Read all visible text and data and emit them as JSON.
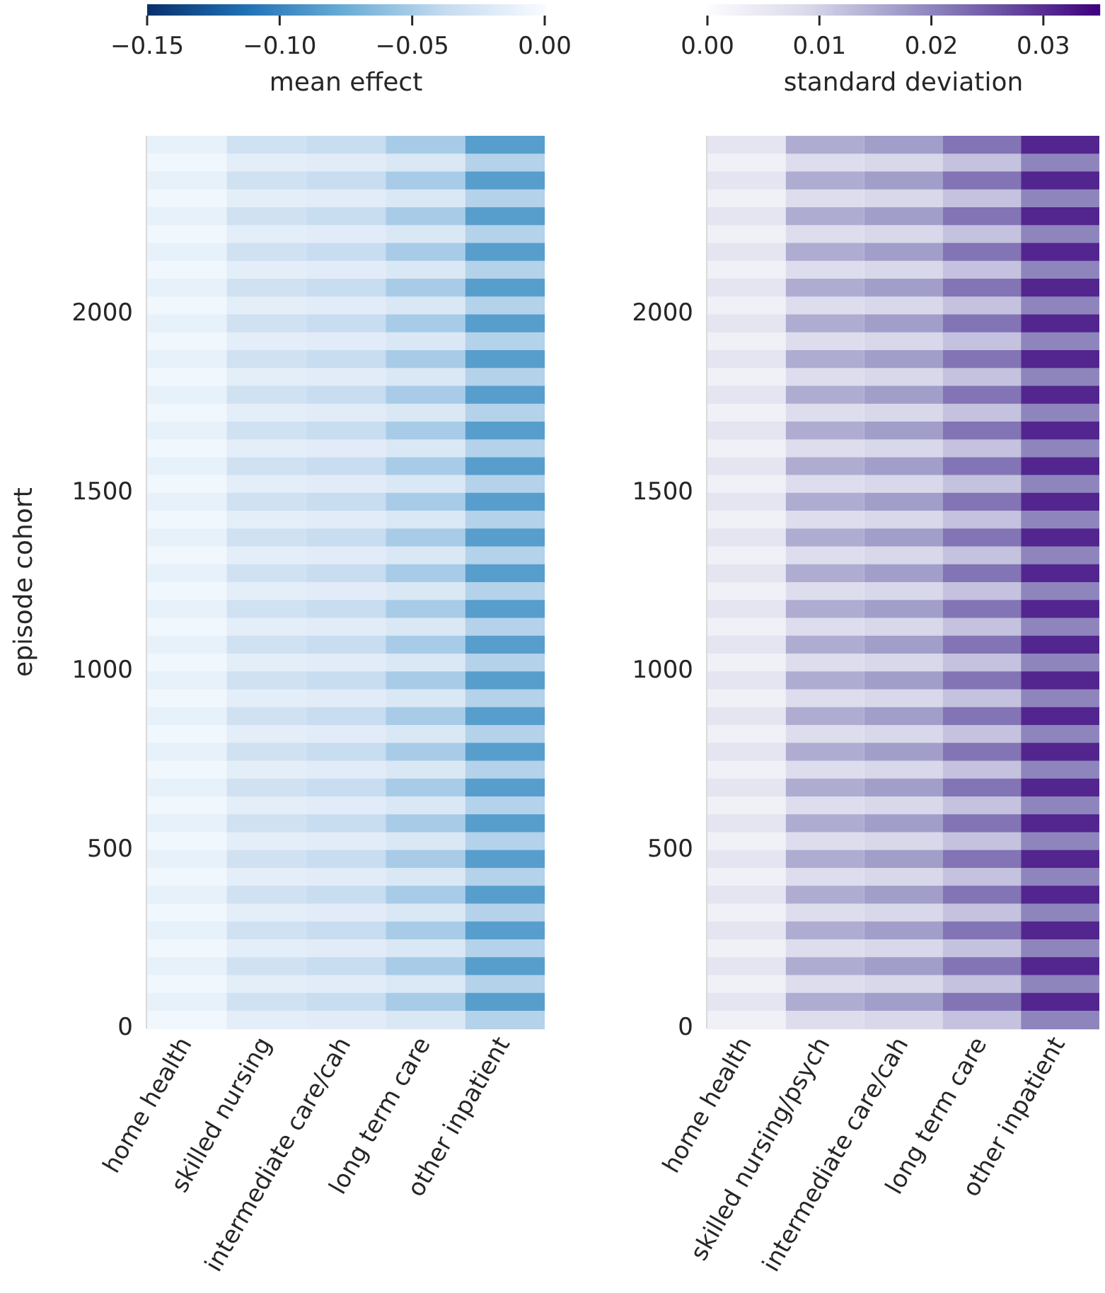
{
  "chart_data": [
    {
      "type": "heatmap",
      "clabel": "mean effect",
      "ylabel": "episode cohort",
      "categories": [
        "home health",
        "skilled nursing",
        "intermediate care/cah",
        "long term care",
        "other inpatient"
      ],
      "ylim": [
        0,
        2500
      ],
      "yticks": [
        0,
        500,
        1000,
        1500,
        2000
      ],
      "clim": [
        -0.15,
        0
      ],
      "cticks": [
        {
          "value": -0.15,
          "label": "−0.15"
        },
        {
          "value": -0.1,
          "label": "−0.10"
        },
        {
          "value": -0.05,
          "label": "−0.05"
        },
        {
          "value": 0,
          "label": "0.00"
        }
      ],
      "cells": [
        [
          -0.012,
          -0.03,
          -0.035,
          -0.05,
          -0.085
        ],
        [
          -0.005,
          -0.015,
          -0.017,
          -0.022,
          -0.045
        ],
        [
          -0.012,
          -0.03,
          -0.035,
          -0.05,
          -0.085
        ],
        [
          -0.005,
          -0.015,
          -0.017,
          -0.022,
          -0.045
        ],
        [
          -0.012,
          -0.03,
          -0.035,
          -0.05,
          -0.085
        ],
        [
          -0.005,
          -0.015,
          -0.017,
          -0.022,
          -0.045
        ],
        [
          -0.012,
          -0.03,
          -0.035,
          -0.05,
          -0.085
        ],
        [
          -0.005,
          -0.015,
          -0.017,
          -0.022,
          -0.045
        ],
        [
          -0.012,
          -0.03,
          -0.035,
          -0.05,
          -0.085
        ],
        [
          -0.005,
          -0.015,
          -0.017,
          -0.022,
          -0.045
        ],
        [
          -0.012,
          -0.03,
          -0.035,
          -0.05,
          -0.085
        ],
        [
          -0.005,
          -0.015,
          -0.017,
          -0.022,
          -0.045
        ],
        [
          -0.012,
          -0.03,
          -0.035,
          -0.05,
          -0.085
        ],
        [
          -0.005,
          -0.015,
          -0.017,
          -0.022,
          -0.045
        ],
        [
          -0.012,
          -0.03,
          -0.035,
          -0.05,
          -0.085
        ],
        [
          -0.005,
          -0.015,
          -0.017,
          -0.022,
          -0.045
        ],
        [
          -0.012,
          -0.03,
          -0.035,
          -0.05,
          -0.085
        ],
        [
          -0.005,
          -0.015,
          -0.017,
          -0.022,
          -0.045
        ],
        [
          -0.012,
          -0.03,
          -0.035,
          -0.05,
          -0.085
        ],
        [
          -0.005,
          -0.015,
          -0.017,
          -0.022,
          -0.045
        ],
        [
          -0.012,
          -0.03,
          -0.035,
          -0.05,
          -0.085
        ],
        [
          -0.005,
          -0.015,
          -0.017,
          -0.022,
          -0.045
        ],
        [
          -0.012,
          -0.03,
          -0.035,
          -0.05,
          -0.085
        ],
        [
          -0.005,
          -0.015,
          -0.017,
          -0.022,
          -0.045
        ],
        [
          -0.012,
          -0.03,
          -0.035,
          -0.05,
          -0.085
        ],
        [
          -0.005,
          -0.015,
          -0.017,
          -0.022,
          -0.045
        ],
        [
          -0.012,
          -0.03,
          -0.035,
          -0.05,
          -0.085
        ],
        [
          -0.005,
          -0.015,
          -0.017,
          -0.022,
          -0.045
        ],
        [
          -0.012,
          -0.03,
          -0.035,
          -0.05,
          -0.085
        ],
        [
          -0.005,
          -0.015,
          -0.017,
          -0.022,
          -0.045
        ],
        [
          -0.012,
          -0.03,
          -0.035,
          -0.05,
          -0.085
        ],
        [
          -0.005,
          -0.015,
          -0.017,
          -0.022,
          -0.045
        ],
        [
          -0.012,
          -0.03,
          -0.035,
          -0.05,
          -0.085
        ],
        [
          -0.005,
          -0.015,
          -0.017,
          -0.022,
          -0.045
        ],
        [
          -0.012,
          -0.03,
          -0.035,
          -0.05,
          -0.085
        ],
        [
          -0.005,
          -0.015,
          -0.017,
          -0.022,
          -0.045
        ],
        [
          -0.012,
          -0.03,
          -0.035,
          -0.05,
          -0.085
        ],
        [
          -0.005,
          -0.015,
          -0.017,
          -0.022,
          -0.045
        ],
        [
          -0.012,
          -0.03,
          -0.035,
          -0.05,
          -0.085
        ],
        [
          -0.005,
          -0.015,
          -0.017,
          -0.022,
          -0.045
        ],
        [
          -0.012,
          -0.03,
          -0.035,
          -0.05,
          -0.085
        ],
        [
          -0.005,
          -0.015,
          -0.017,
          -0.022,
          -0.045
        ],
        [
          -0.012,
          -0.03,
          -0.035,
          -0.05,
          -0.085
        ],
        [
          -0.005,
          -0.015,
          -0.017,
          -0.022,
          -0.045
        ],
        [
          -0.012,
          -0.03,
          -0.035,
          -0.05,
          -0.085
        ],
        [
          -0.005,
          -0.015,
          -0.017,
          -0.022,
          -0.045
        ],
        [
          -0.012,
          -0.03,
          -0.035,
          -0.05,
          -0.085
        ],
        [
          -0.005,
          -0.015,
          -0.017,
          -0.022,
          -0.045
        ],
        [
          -0.012,
          -0.03,
          -0.035,
          -0.05,
          -0.085
        ],
        [
          -0.005,
          -0.015,
          -0.017,
          -0.022,
          -0.045
        ]
      ]
    },
    {
      "type": "heatmap",
      "clabel": "standard deviation",
      "categories": [
        "home health",
        "skilled nursing/psych",
        "intermediate care/cah",
        "long term care",
        "other inpatient"
      ],
      "ylim": [
        0,
        2500
      ],
      "yticks": [
        0,
        500,
        1000,
        1500,
        2000
      ],
      "clim": [
        0,
        0.035
      ],
      "cticks": [
        {
          "value": 0,
          "label": "0.00"
        },
        {
          "value": 0.01,
          "label": "0.01"
        },
        {
          "value": 0.02,
          "label": "0.02"
        },
        {
          "value": 0.03,
          "label": "0.03"
        }
      ],
      "cells": [
        [
          0.006,
          0.015,
          0.017,
          0.022,
          0.031
        ],
        [
          0.003,
          0.008,
          0.009,
          0.012,
          0.02
        ],
        [
          0.006,
          0.015,
          0.017,
          0.022,
          0.031
        ],
        [
          0.003,
          0.008,
          0.009,
          0.012,
          0.02
        ],
        [
          0.006,
          0.015,
          0.017,
          0.022,
          0.031
        ],
        [
          0.003,
          0.008,
          0.009,
          0.012,
          0.02
        ],
        [
          0.006,
          0.015,
          0.017,
          0.022,
          0.031
        ],
        [
          0.003,
          0.008,
          0.009,
          0.012,
          0.02
        ],
        [
          0.006,
          0.015,
          0.017,
          0.022,
          0.031
        ],
        [
          0.003,
          0.008,
          0.009,
          0.012,
          0.02
        ],
        [
          0.006,
          0.015,
          0.017,
          0.022,
          0.031
        ],
        [
          0.003,
          0.008,
          0.009,
          0.012,
          0.02
        ],
        [
          0.006,
          0.015,
          0.017,
          0.022,
          0.031
        ],
        [
          0.003,
          0.008,
          0.009,
          0.012,
          0.02
        ],
        [
          0.006,
          0.015,
          0.017,
          0.022,
          0.031
        ],
        [
          0.003,
          0.008,
          0.009,
          0.012,
          0.02
        ],
        [
          0.006,
          0.015,
          0.017,
          0.022,
          0.031
        ],
        [
          0.003,
          0.008,
          0.009,
          0.012,
          0.02
        ],
        [
          0.006,
          0.015,
          0.017,
          0.022,
          0.031
        ],
        [
          0.003,
          0.008,
          0.009,
          0.012,
          0.02
        ],
        [
          0.006,
          0.015,
          0.017,
          0.022,
          0.031
        ],
        [
          0.003,
          0.008,
          0.009,
          0.012,
          0.02
        ],
        [
          0.006,
          0.015,
          0.017,
          0.022,
          0.031
        ],
        [
          0.003,
          0.008,
          0.009,
          0.012,
          0.02
        ],
        [
          0.006,
          0.015,
          0.017,
          0.022,
          0.031
        ],
        [
          0.003,
          0.008,
          0.009,
          0.012,
          0.02
        ],
        [
          0.006,
          0.015,
          0.017,
          0.022,
          0.031
        ],
        [
          0.003,
          0.008,
          0.009,
          0.012,
          0.02
        ],
        [
          0.006,
          0.015,
          0.017,
          0.022,
          0.031
        ],
        [
          0.003,
          0.008,
          0.009,
          0.012,
          0.02
        ],
        [
          0.006,
          0.015,
          0.017,
          0.022,
          0.031
        ],
        [
          0.003,
          0.008,
          0.009,
          0.012,
          0.02
        ],
        [
          0.006,
          0.015,
          0.017,
          0.022,
          0.031
        ],
        [
          0.003,
          0.008,
          0.009,
          0.012,
          0.02
        ],
        [
          0.006,
          0.015,
          0.017,
          0.022,
          0.031
        ],
        [
          0.003,
          0.008,
          0.009,
          0.012,
          0.02
        ],
        [
          0.006,
          0.015,
          0.017,
          0.022,
          0.031
        ],
        [
          0.003,
          0.008,
          0.009,
          0.012,
          0.02
        ],
        [
          0.006,
          0.015,
          0.017,
          0.022,
          0.031
        ],
        [
          0.003,
          0.008,
          0.009,
          0.012,
          0.02
        ],
        [
          0.006,
          0.015,
          0.017,
          0.022,
          0.031
        ],
        [
          0.003,
          0.008,
          0.009,
          0.012,
          0.02
        ],
        [
          0.006,
          0.015,
          0.017,
          0.022,
          0.031
        ],
        [
          0.003,
          0.008,
          0.009,
          0.012,
          0.02
        ],
        [
          0.006,
          0.015,
          0.017,
          0.022,
          0.031
        ],
        [
          0.003,
          0.008,
          0.009,
          0.012,
          0.02
        ],
        [
          0.006,
          0.015,
          0.017,
          0.022,
          0.031
        ],
        [
          0.003,
          0.008,
          0.009,
          0.012,
          0.02
        ],
        [
          0.006,
          0.015,
          0.017,
          0.022,
          0.031
        ],
        [
          0.003,
          0.008,
          0.009,
          0.012,
          0.02
        ]
      ]
    }
  ]
}
